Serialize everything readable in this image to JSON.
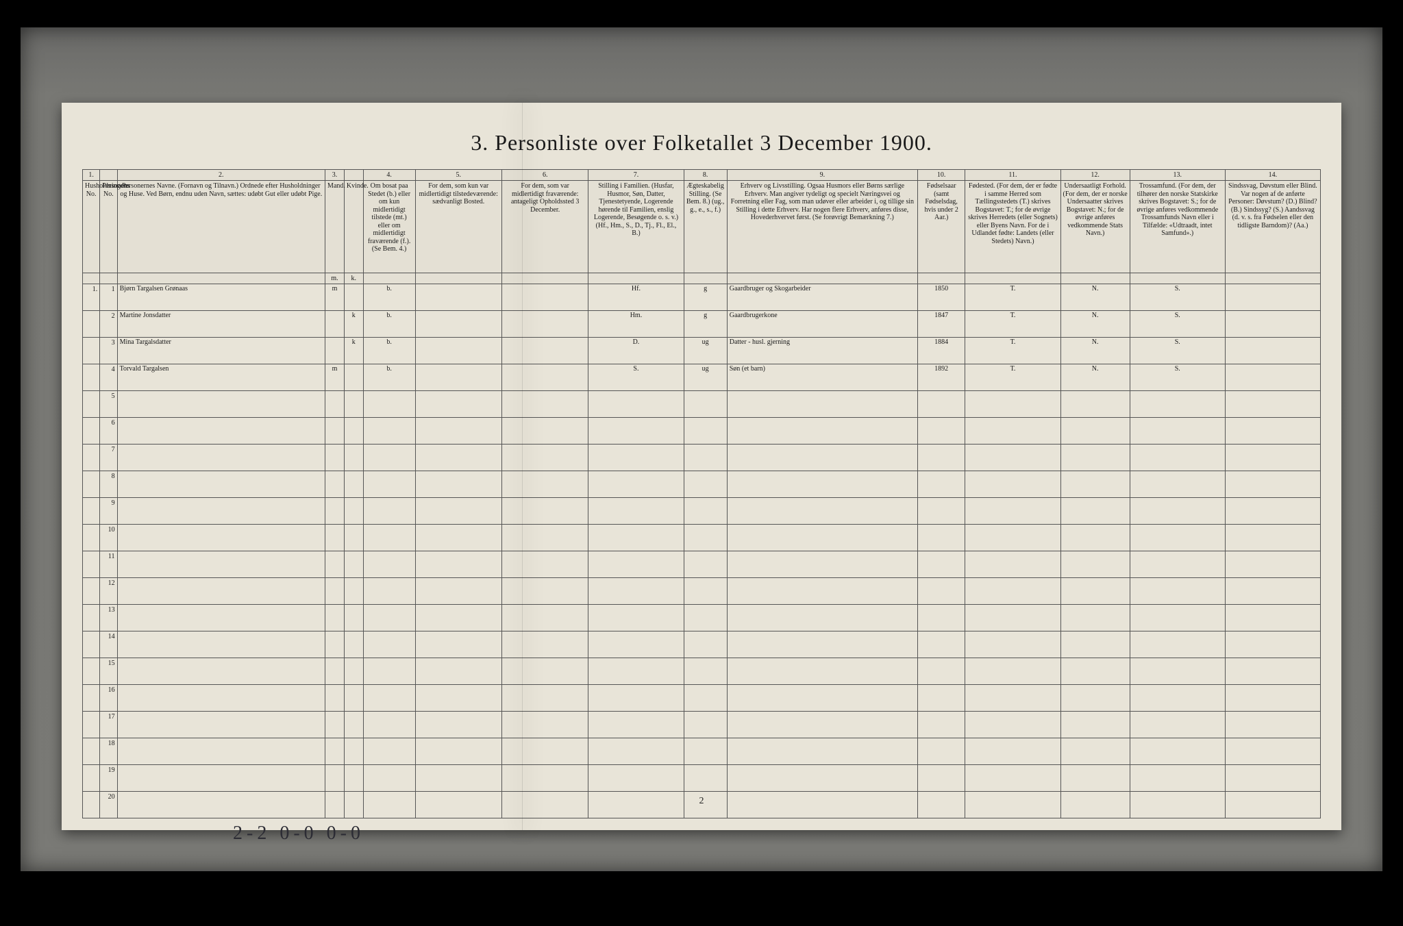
{
  "title": "3. Personliste over Folketallet 3 December 1900.",
  "page_number": "2",
  "footer_scrawl": "2-2    0-0    0-0",
  "columns": {
    "nums": [
      "1.",
      "",
      "2.",
      "3.",
      "",
      "4.",
      "5.",
      "6.",
      "7.",
      "8.",
      "9.",
      "10.",
      "11.",
      "12.",
      "13.",
      "14."
    ],
    "heads": [
      "Husholdningens No.",
      "Personens No.",
      "Personernes Navne. (Fornavn og Tilnavn.) Ordnede efter Husholdninger og Huse. Ved Børn, endnu uden Navn, sættes: udøbt Gut eller udøbt Pige.",
      "Mand.",
      "Kvinde.",
      "Om bosat paa Stedet (b.) eller om kun midlertidigt tilstede (mt.) eller om midlertidigt fraværende (f.). (Se Bem. 4.)",
      "For dem, som kun var midlertidigt tilstedeværende: sædvanligt Bosted.",
      "For dem, som var midlertidigt fraværende: antageligt Opholdssted 3 December.",
      "Stilling i Familien. (Husfar, Husmor, Søn, Datter, Tjenestetyende, Logerende hørende til Familien, enslig Logerende, Besøgende o. s. v.) (Hf., Hm., S., D., Tj., Fl., El., B.)",
      "Ægteskabelig Stilling. (Se Bem. 8.) (ug., g., e., s., f.)",
      "Erhverv og Livsstilling. Ogsaa Husmors eller Børns særlige Erhverv. Man angiver tydeligt og specielt Næringsvei og Forretning eller Fag, som man udøver eller arbeider i, og tillige sin Stilling i dette Erhverv. Har nogen flere Erhverv, anføres disse, Hovederhvervet først. (Se forøvrigt Bemærkning 7.)",
      "Fødselsaar (samt Fødselsdag, hvis under 2 Aar.)",
      "Fødested. (For dem, der er fødte i samme Herred som Tællingsstedets (T.) skrives Bogstavet: T.; for de øvrige skrives Herredets (eller Sognets) eller Byens Navn. For de i Udlandet fødte: Landets (eller Stedets) Navn.)",
      "Undersaatligt Forhold. (For dem, der er norske Undersaatter skrives Bogstavet: N.; for de øvrige anføres vedkommende Stats Navn.)",
      "Trossamfund. (For dem, der tilhører den norske Statskirke skrives Bogstavet: S.; for de øvrige anføres vedkommende Trossamfunds Navn eller i Tilfælde: «Udtraadt, intet Samfund».)",
      "Sindssvag, Døvstum eller Blind. Var nogen af de anførte Personer: Døvstum? (D.) Blind? (B.) Sindssyg? (S.) Aandssvag (d. v. s. fra Fødselen eller den tidligste Barndom)? (Aa.)"
    ],
    "sub": [
      "",
      "",
      "",
      "m.",
      "k.",
      "",
      "",
      "",
      "",
      "",
      "",
      "",
      "",
      "",
      "",
      ""
    ],
    "widths": [
      20,
      20,
      240,
      22,
      22,
      60,
      100,
      100,
      110,
      50,
      220,
      55,
      110,
      80,
      110,
      110
    ]
  },
  "rows": [
    {
      "hh": "1.",
      "pn": "1",
      "name": "Bjørn Targalsen Grønaas",
      "m": "m",
      "k": "",
      "stat": "b.",
      "c5": "",
      "c6": "",
      "fam": "Hf.",
      "eg": "g",
      "erv": "Gaardbruger og Skogarbeider",
      "yr": "1850",
      "fd": "T.",
      "un": "N.",
      "tr": "S.",
      "c14": ""
    },
    {
      "hh": "",
      "pn": "2",
      "name": "Martine Jonsdatter",
      "m": "",
      "k": "k",
      "stat": "b.",
      "c5": "",
      "c6": "",
      "fam": "Hm.",
      "eg": "g",
      "erv": "Gaardbrugerkone",
      "yr": "1847",
      "fd": "T.",
      "un": "N.",
      "tr": "S.",
      "c14": ""
    },
    {
      "hh": "",
      "pn": "3",
      "name": "Mina Targalsdatter",
      "m": "",
      "k": "k",
      "stat": "b.",
      "c5": "",
      "c6": "",
      "fam": "D.",
      "eg": "ug",
      "erv": "Datter - husl. gjerning",
      "yr": "1884",
      "fd": "T.",
      "un": "N.",
      "tr": "S.",
      "c14": ""
    },
    {
      "hh": "",
      "pn": "4",
      "name": "Torvald Targalsen",
      "m": "m",
      "k": "",
      "stat": "b.",
      "c5": "",
      "c6": "",
      "fam": "S.",
      "eg": "ug",
      "erv": "Søn (et barn)",
      "yr": "1892",
      "fd": "T.",
      "un": "N.",
      "tr": "S.",
      "c14": ""
    }
  ],
  "empty_rows": [
    5,
    6,
    7,
    8,
    9,
    10,
    11,
    12,
    13,
    14,
    15,
    16,
    17,
    18,
    19,
    20
  ],
  "colors": {
    "paper": "#e8e4d8",
    "border": "#555555",
    "ink": "#2c2c34",
    "surround": "#787874"
  }
}
